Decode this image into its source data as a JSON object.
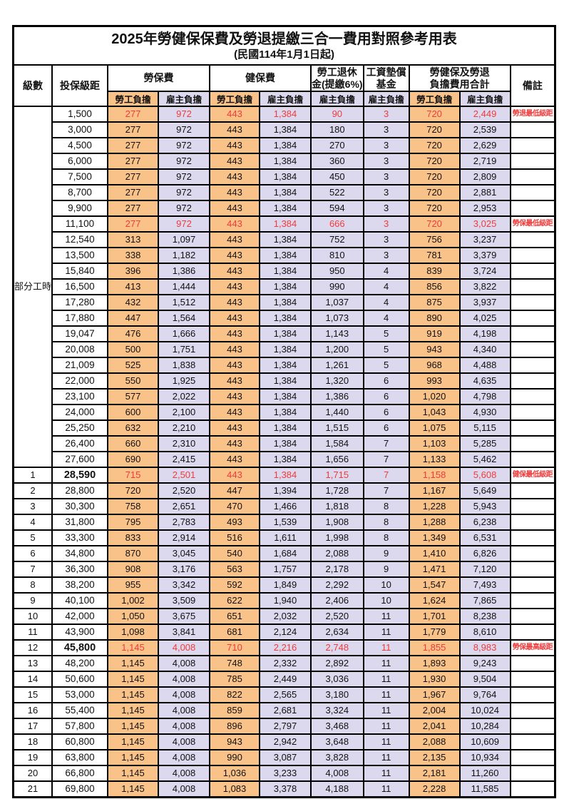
{
  "page": {
    "title": "2025年勞健保保費及勞退提繳三合一費用對照參考用表",
    "subtitle": "(民國114年1月1日起)"
  },
  "colors": {
    "employee_col_bg": "#F9C289",
    "employer_col_bg": "#DCD9EE",
    "highlight_text": "#F03B3B",
    "grid": "#000000"
  },
  "table": {
    "headers": {
      "level": "級數",
      "bracket": "投保級距",
      "labor": "勞保費",
      "health": "健保費",
      "pension_l1": "勞工退休",
      "pension_l2": "金(提繳6%)",
      "wage_l1": "工資墊償",
      "wage_l2": "基金",
      "total_l1": "勞健保及勞退",
      "total_l2": "負擔費用合計",
      "note": "備註",
      "employee": "勞工負擔",
      "employer": "雇主負擔"
    },
    "group": {
      "label": "部分工時",
      "span": 23
    },
    "rows": [
      {
        "level": "",
        "bracket": "1,500",
        "values": [
          "277",
          "972",
          "443",
          "1,384",
          "90",
          "3",
          "720",
          "2,449"
        ],
        "note": "勞退最低級距",
        "red": true,
        "bold": false
      },
      {
        "level": "",
        "bracket": "3,000",
        "values": [
          "277",
          "972",
          "443",
          "1,384",
          "180",
          "3",
          "720",
          "2,539"
        ],
        "note": "",
        "red": false,
        "bold": false
      },
      {
        "level": "",
        "bracket": "4,500",
        "values": [
          "277",
          "972",
          "443",
          "1,384",
          "270",
          "3",
          "720",
          "2,629"
        ],
        "note": "",
        "red": false,
        "bold": false
      },
      {
        "level": "",
        "bracket": "6,000",
        "values": [
          "277",
          "972",
          "443",
          "1,384",
          "360",
          "3",
          "720",
          "2,719"
        ],
        "note": "",
        "red": false,
        "bold": false
      },
      {
        "level": "",
        "bracket": "7,500",
        "values": [
          "277",
          "972",
          "443",
          "1,384",
          "450",
          "3",
          "720",
          "2,809"
        ],
        "note": "",
        "red": false,
        "bold": false
      },
      {
        "level": "",
        "bracket": "8,700",
        "values": [
          "277",
          "972",
          "443",
          "1,384",
          "522",
          "3",
          "720",
          "2,881"
        ],
        "note": "",
        "red": false,
        "bold": false
      },
      {
        "level": "",
        "bracket": "9,900",
        "values": [
          "277",
          "972",
          "443",
          "1,384",
          "594",
          "3",
          "720",
          "2,953"
        ],
        "note": "",
        "red": false,
        "bold": false
      },
      {
        "level": "",
        "bracket": "11,100",
        "values": [
          "277",
          "972",
          "443",
          "1,384",
          "666",
          "3",
          "720",
          "3,025"
        ],
        "note": "勞保最低級距",
        "red": true,
        "bold": false
      },
      {
        "level": "",
        "bracket": "12,540",
        "values": [
          "313",
          "1,097",
          "443",
          "1,384",
          "752",
          "3",
          "756",
          "3,237"
        ],
        "note": "",
        "red": false,
        "bold": false
      },
      {
        "level": "",
        "bracket": "13,500",
        "values": [
          "338",
          "1,182",
          "443",
          "1,384",
          "810",
          "3",
          "781",
          "3,379"
        ],
        "note": "",
        "red": false,
        "bold": false
      },
      {
        "level": "",
        "bracket": "15,840",
        "values": [
          "396",
          "1,386",
          "443",
          "1,384",
          "950",
          "4",
          "839",
          "3,724"
        ],
        "note": "",
        "red": false,
        "bold": false
      },
      {
        "level": "",
        "bracket": "16,500",
        "values": [
          "413",
          "1,444",
          "443",
          "1,384",
          "990",
          "4",
          "856",
          "3,822"
        ],
        "note": "",
        "red": false,
        "bold": false
      },
      {
        "level": "",
        "bracket": "17,280",
        "values": [
          "432",
          "1,512",
          "443",
          "1,384",
          "1,037",
          "4",
          "875",
          "3,937"
        ],
        "note": "",
        "red": false,
        "bold": false
      },
      {
        "level": "",
        "bracket": "17,880",
        "values": [
          "447",
          "1,564",
          "443",
          "1,384",
          "1,073",
          "4",
          "890",
          "4,025"
        ],
        "note": "",
        "red": false,
        "bold": false
      },
      {
        "level": "",
        "bracket": "19,047",
        "values": [
          "476",
          "1,666",
          "443",
          "1,384",
          "1,143",
          "5",
          "919",
          "4,198"
        ],
        "note": "",
        "red": false,
        "bold": false
      },
      {
        "level": "",
        "bracket": "20,008",
        "values": [
          "500",
          "1,751",
          "443",
          "1,384",
          "1,200",
          "5",
          "943",
          "4,340"
        ],
        "note": "",
        "red": false,
        "bold": false
      },
      {
        "level": "",
        "bracket": "21,009",
        "values": [
          "525",
          "1,838",
          "443",
          "1,384",
          "1,261",
          "5",
          "968",
          "4,488"
        ],
        "note": "",
        "red": false,
        "bold": false
      },
      {
        "level": "",
        "bracket": "22,000",
        "values": [
          "550",
          "1,925",
          "443",
          "1,384",
          "1,320",
          "6",
          "993",
          "4,635"
        ],
        "note": "",
        "red": false,
        "bold": false
      },
      {
        "level": "",
        "bracket": "23,100",
        "values": [
          "577",
          "2,022",
          "443",
          "1,384",
          "1,386",
          "6",
          "1,020",
          "4,798"
        ],
        "note": "",
        "red": false,
        "bold": false
      },
      {
        "level": "",
        "bracket": "24,000",
        "values": [
          "600",
          "2,100",
          "443",
          "1,384",
          "1,440",
          "6",
          "1,043",
          "4,930"
        ],
        "note": "",
        "red": false,
        "bold": false
      },
      {
        "level": "",
        "bracket": "25,250",
        "values": [
          "632",
          "2,210",
          "443",
          "1,384",
          "1,515",
          "6",
          "1,075",
          "5,115"
        ],
        "note": "",
        "red": false,
        "bold": false
      },
      {
        "level": "",
        "bracket": "26,400",
        "values": [
          "660",
          "2,310",
          "443",
          "1,384",
          "1,584",
          "7",
          "1,103",
          "5,285"
        ],
        "note": "",
        "red": false,
        "bold": false
      },
      {
        "level": "",
        "bracket": "27,600",
        "values": [
          "690",
          "2,415",
          "443",
          "1,384",
          "1,656",
          "7",
          "1,133",
          "5,462"
        ],
        "note": "",
        "red": false,
        "bold": false
      },
      {
        "level": "1",
        "bracket": "28,590",
        "values": [
          "715",
          "2,501",
          "443",
          "1,384",
          "1,715",
          "7",
          "1,158",
          "5,608"
        ],
        "note": "健保最低級距",
        "red": true,
        "bold": true
      },
      {
        "level": "2",
        "bracket": "28,800",
        "values": [
          "720",
          "2,520",
          "447",
          "1,394",
          "1,728",
          "7",
          "1,167",
          "5,649"
        ],
        "note": "",
        "red": false,
        "bold": false
      },
      {
        "level": "3",
        "bracket": "30,300",
        "values": [
          "758",
          "2,651",
          "470",
          "1,466",
          "1,818",
          "8",
          "1,228",
          "5,943"
        ],
        "note": "",
        "red": false,
        "bold": false
      },
      {
        "level": "4",
        "bracket": "31,800",
        "values": [
          "795",
          "2,783",
          "493",
          "1,539",
          "1,908",
          "8",
          "1,288",
          "6,238"
        ],
        "note": "",
        "red": false,
        "bold": false
      },
      {
        "level": "5",
        "bracket": "33,300",
        "values": [
          "833",
          "2,914",
          "516",
          "1,611",
          "1,998",
          "8",
          "1,349",
          "6,531"
        ],
        "note": "",
        "red": false,
        "bold": false
      },
      {
        "level": "6",
        "bracket": "34,800",
        "values": [
          "870",
          "3,045",
          "540",
          "1,684",
          "2,088",
          "9",
          "1,410",
          "6,826"
        ],
        "note": "",
        "red": false,
        "bold": false
      },
      {
        "level": "7",
        "bracket": "36,300",
        "values": [
          "908",
          "3,176",
          "563",
          "1,757",
          "2,178",
          "9",
          "1,471",
          "7,120"
        ],
        "note": "",
        "red": false,
        "bold": false
      },
      {
        "level": "8",
        "bracket": "38,200",
        "values": [
          "955",
          "3,342",
          "592",
          "1,849",
          "2,292",
          "10",
          "1,547",
          "7,493"
        ],
        "note": "",
        "red": false,
        "bold": false
      },
      {
        "level": "9",
        "bracket": "40,100",
        "values": [
          "1,002",
          "3,509",
          "622",
          "1,940",
          "2,406",
          "10",
          "1,624",
          "7,865"
        ],
        "note": "",
        "red": false,
        "bold": false
      },
      {
        "level": "10",
        "bracket": "42,000",
        "values": [
          "1,050",
          "3,675",
          "651",
          "2,032",
          "2,520",
          "11",
          "1,701",
          "8,238"
        ],
        "note": "",
        "red": false,
        "bold": false
      },
      {
        "level": "11",
        "bracket": "43,900",
        "values": [
          "1,098",
          "3,841",
          "681",
          "2,124",
          "2,634",
          "11",
          "1,779",
          "8,610"
        ],
        "note": "",
        "red": false,
        "bold": false
      },
      {
        "level": "12",
        "bracket": "45,800",
        "values": [
          "1,145",
          "4,008",
          "710",
          "2,216",
          "2,748",
          "11",
          "1,855",
          "8,983"
        ],
        "note": "勞保最高級距",
        "red": true,
        "bold": true
      },
      {
        "level": "13",
        "bracket": "48,200",
        "values": [
          "1,145",
          "4,008",
          "748",
          "2,332",
          "2,892",
          "11",
          "1,893",
          "9,243"
        ],
        "note": "",
        "red": false,
        "bold": false
      },
      {
        "level": "14",
        "bracket": "50,600",
        "values": [
          "1,145",
          "4,008",
          "785",
          "2,449",
          "3,036",
          "11",
          "1,930",
          "9,504"
        ],
        "note": "",
        "red": false,
        "bold": false
      },
      {
        "level": "15",
        "bracket": "53,000",
        "values": [
          "1,145",
          "4,008",
          "822",
          "2,565",
          "3,180",
          "11",
          "1,967",
          "9,764"
        ],
        "note": "",
        "red": false,
        "bold": false
      },
      {
        "level": "16",
        "bracket": "55,400",
        "values": [
          "1,145",
          "4,008",
          "859",
          "2,681",
          "3,324",
          "11",
          "2,004",
          "10,024"
        ],
        "note": "",
        "red": false,
        "bold": false
      },
      {
        "level": "17",
        "bracket": "57,800",
        "values": [
          "1,145",
          "4,008",
          "896",
          "2,797",
          "3,468",
          "11",
          "2,041",
          "10,284"
        ],
        "note": "",
        "red": false,
        "bold": false
      },
      {
        "level": "18",
        "bracket": "60,800",
        "values": [
          "1,145",
          "4,008",
          "943",
          "2,942",
          "3,648",
          "11",
          "2,088",
          "10,609"
        ],
        "note": "",
        "red": false,
        "bold": false
      },
      {
        "level": "19",
        "bracket": "63,800",
        "values": [
          "1,145",
          "4,008",
          "990",
          "3,087",
          "3,828",
          "11",
          "2,135",
          "10,934"
        ],
        "note": "",
        "red": false,
        "bold": false
      },
      {
        "level": "20",
        "bracket": "66,800",
        "values": [
          "1,145",
          "4,008",
          "1,036",
          "3,233",
          "4,008",
          "11",
          "2,181",
          "11,260"
        ],
        "note": "",
        "red": false,
        "bold": false
      },
      {
        "level": "21",
        "bracket": "69,800",
        "values": [
          "1,145",
          "4,008",
          "1,083",
          "3,378",
          "4,188",
          "11",
          "2,228",
          "11,585"
        ],
        "note": "",
        "red": false,
        "bold": false
      }
    ]
  }
}
